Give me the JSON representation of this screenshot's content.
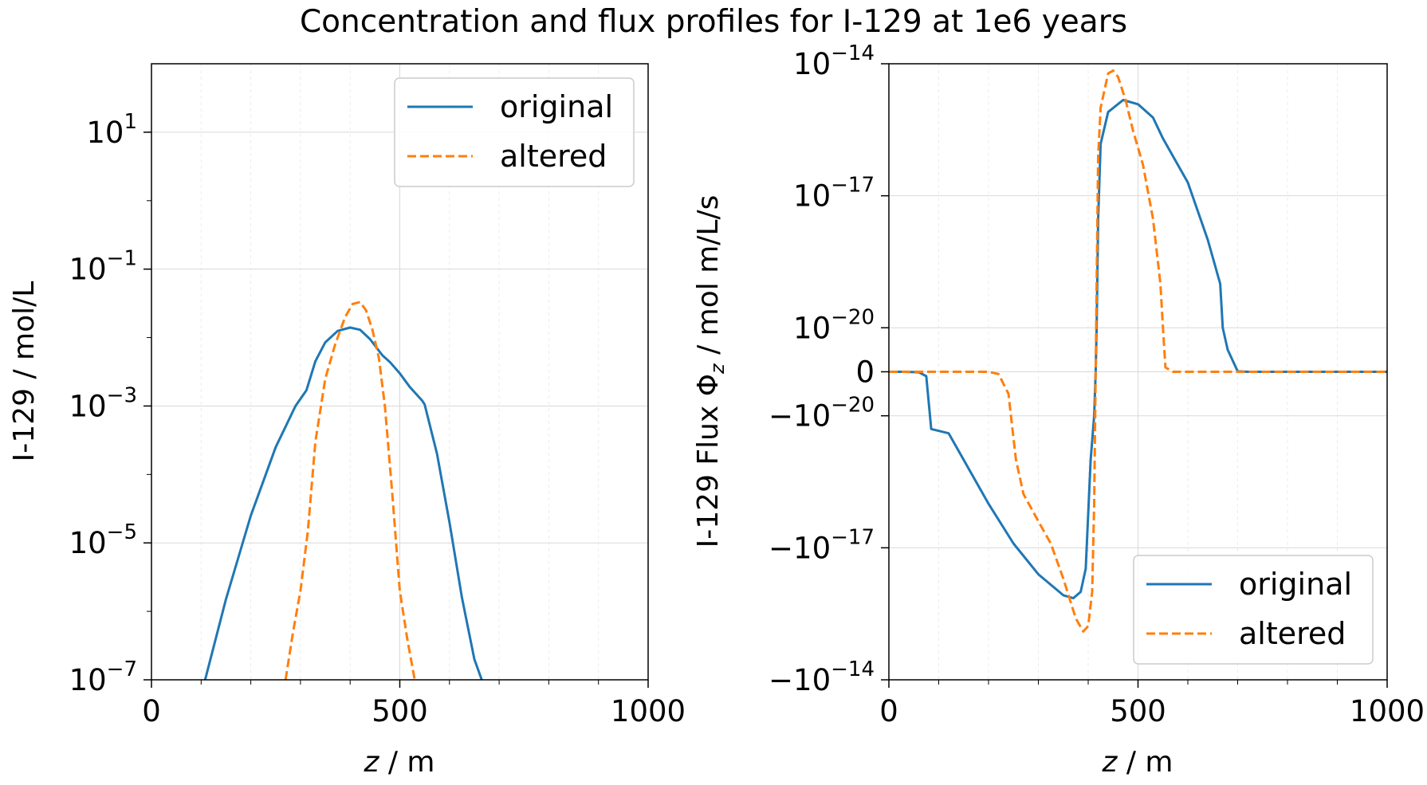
{
  "figure": {
    "suptitle": "Concentration and flux profiles for I-129 at 1e6 years"
  },
  "colors": {
    "original": "#1f77b4",
    "altered": "#ff7f0e",
    "grid": "#d9d9d9",
    "axes": "#000000"
  },
  "chart_data": [
    {
      "type": "line",
      "title": "",
      "xlabel_italic": "z",
      "xlabel_rest": " / m",
      "ylabel": "I-129 / mol/L",
      "xlim": [
        0,
        1000
      ],
      "ylim": [
        1e-07,
        100.0
      ],
      "yscale": "log",
      "xticks": [
        0,
        500,
        1000
      ],
      "xtick_labels": [
        "0",
        "500",
        "1000"
      ],
      "yticks": [
        {
          "value": 1e-07,
          "base": "10",
          "exp": "−7"
        },
        {
          "value": 1e-05,
          "base": "10",
          "exp": "−5"
        },
        {
          "value": 0.001,
          "base": "10",
          "exp": "−3"
        },
        {
          "value": 0.1,
          "base": "10",
          "exp": "−1"
        },
        {
          "value": 10.0,
          "base": "10",
          "exp": "1"
        }
      ],
      "grid": true,
      "legend": "top-right",
      "series": [
        {
          "name": "original",
          "style": "solid",
          "x": [
            108,
            150,
            200,
            250,
            290,
            312,
            330,
            350,
            375,
            400,
            420,
            440,
            465,
            480,
            500,
            520,
            545,
            550,
            575,
            600,
            625,
            650,
            665
          ],
          "y": [
            1e-07,
            1.5e-06,
            2.5e-05,
            0.00025,
            0.001,
            0.0017,
            0.0045,
            0.0085,
            0.0125,
            0.014,
            0.013,
            0.0095,
            0.0055,
            0.0044,
            0.003,
            0.0019,
            0.0012,
            0.00105,
            0.0002,
            2e-05,
            1.6e-06,
            2e-07,
            1e-07
          ]
        },
        {
          "name": "altered",
          "style": "dashed",
          "x": [
            270,
            285,
            300,
            315,
            330,
            350,
            370,
            390,
            405,
            420,
            432,
            445,
            458,
            470,
            485,
            500,
            515,
            530
          ],
          "y": [
            1e-07,
            5e-07,
            2e-06,
            1.5e-05,
            0.0003,
            0.0025,
            0.008,
            0.02,
            0.031,
            0.033,
            0.025,
            0.013,
            0.005,
            0.001,
            5e-05,
            2e-06,
            4e-07,
            1e-07
          ]
        }
      ]
    },
    {
      "type": "line",
      "title": "",
      "xlabel_italic": "z",
      "xlabel_rest": " / m",
      "ylabel_prefix": "I-129 Flux Φ",
      "ylabel_sub": "z",
      "ylabel_suffix": " / mol m/L/s",
      "xlim": [
        0,
        1000
      ],
      "yscale": "symlog",
      "linthresh": 1e-20,
      "ylim": [
        -1e-14,
        1e-14
      ],
      "xticks": [
        0,
        500,
        1000
      ],
      "xtick_labels": [
        "0",
        "500",
        "1000"
      ],
      "yticks": [
        {
          "value": -1e-14,
          "prefix": "−",
          "base": "10",
          "exp": "−14"
        },
        {
          "value": -1e-17,
          "prefix": "−",
          "base": "10",
          "exp": "−17"
        },
        {
          "value": -1e-20,
          "prefix": "−",
          "base": "10",
          "exp": "−20"
        },
        {
          "value": 0,
          "prefix": "",
          "base": "0",
          "exp": ""
        },
        {
          "value": 1e-20,
          "prefix": "",
          "base": "10",
          "exp": "−20"
        },
        {
          "value": 1e-17,
          "prefix": "",
          "base": "10",
          "exp": "−17"
        },
        {
          "value": 1e-14,
          "prefix": "",
          "base": "10",
          "exp": "−14"
        }
      ],
      "grid": true,
      "legend": "bottom-right",
      "series": [
        {
          "name": "original",
          "style": "solid",
          "x": [
            0,
            30,
            60,
            75,
            85,
            120,
            200,
            250,
            300,
            350,
            370,
            385,
            395,
            405,
            412,
            415,
            417,
            420,
            425,
            440,
            470,
            500,
            530,
            550,
            600,
            640,
            665,
            670,
            680,
            700,
            720,
            1000
          ],
          "y": [
            0,
            -1e-24,
            -1e-22,
            -1e-21,
            -2e-20,
            -2.5e-20,
            -1e-18,
            -8e-18,
            -4e-17,
            -1.2e-16,
            -1.4e-16,
            -1e-16,
            -3e-17,
            -1e-19,
            -1e-20,
            0,
            1e-20,
            3e-18,
            1.5e-16,
            8e-16,
            1.5e-15,
            1.2e-15,
            6e-16,
            2e-16,
            2e-17,
            1e-18,
            1e-19,
            1e-20,
            5e-21,
            1e-22,
            0,
            0
          ]
        },
        {
          "name": "altered",
          "style": "dashed",
          "x": [
            0,
            200,
            220,
            240,
            245,
            255,
            270,
            300,
            325,
            350,
            375,
            390,
            400,
            408,
            412,
            415,
            417,
            420,
            425,
            440,
            450,
            460,
            475,
            490,
            510,
            530,
            545,
            550,
            555,
            570,
            600,
            1000
          ],
          "y": [
            0,
            0,
            -5e-22,
            -5e-21,
            -1e-20,
            -1e-19,
            -6e-19,
            -2.5e-18,
            -8e-18,
            -5e-17,
            -4e-16,
            -8e-16,
            -6e-16,
            -1e-16,
            -1e-18,
            0,
            1e-19,
            8e-17,
            1e-15,
            6e-15,
            7e-15,
            5e-15,
            1.5e-15,
            3e-16,
            5e-17,
            3e-18,
            1e-19,
            1e-20,
            1e-21,
            0,
            0,
            0
          ]
        }
      ]
    }
  ]
}
